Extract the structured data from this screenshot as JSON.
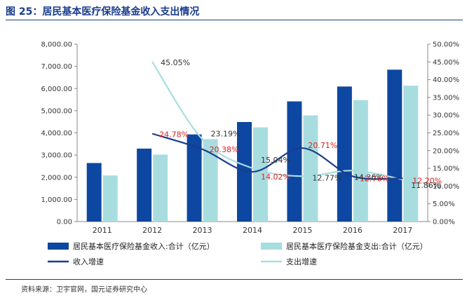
{
  "title": "图 25：居民基本医疗保险基金收入支出情况",
  "source": "资料来源：卫宇官网，国元证券研究中心",
  "colors": {
    "income_bar": "#0d47a1",
    "expense_bar": "#a8dde0",
    "income_line": "#1a3c8c",
    "expense_line": "#a8dde0",
    "label_red": "#e02020",
    "label_gray": "#333333",
    "title": "#1a3c8c"
  },
  "chart_data": {
    "type": "bar",
    "categories": [
      "2011",
      "2012",
      "2013",
      "2014",
      "2015",
      "2016",
      "2017"
    ],
    "left_axis": {
      "ylim": [
        0,
        8000
      ],
      "ticks": [
        "0.00",
        "1,000.00",
        "2,000.00",
        "3,000.00",
        "4,000.00",
        "5,000.00",
        "6,000.00",
        "7,000.00",
        "8,000.00"
      ]
    },
    "right_axis": {
      "ylim": [
        0,
        50
      ],
      "ticks": [
        "0.00%",
        "5.00%",
        "10.00%",
        "15.00%",
        "20.00%",
        "25.00%",
        "30.00%",
        "35.00%",
        "40.00%",
        "45.00%",
        "50.00%"
      ]
    },
    "series": [
      {
        "name": "居民基本医疗保险基金收入:合计（亿元）",
        "kind": "bar",
        "axis": "left",
        "values": [
          2640,
          3290,
          3930,
          4490,
          5420,
          6090,
          6850
        ]
      },
      {
        "name": "居民基本医疗保险基金支出:合计（亿元）",
        "kind": "bar",
        "axis": "left",
        "values": [
          2080,
          3020,
          3720,
          4250,
          4790,
          5480,
          6130
        ]
      },
      {
        "name": "收入增速",
        "kind": "line",
        "axis": "right",
        "values": [
          null,
          24.78,
          20.38,
          14.02,
          20.71,
          12.76,
          12.2
        ],
        "labels": [
          null,
          "24.78%",
          "20.38%",
          "14.02%",
          "20.71%",
          "12.76%",
          "12.20%"
        ]
      },
      {
        "name": "支出增速",
        "kind": "line",
        "axis": "right",
        "values": [
          null,
          45.05,
          23.19,
          15.04,
          12.77,
          14.36,
          11.86
        ],
        "labels": [
          null,
          "45.05%",
          "23.19%",
          "15.04%",
          "12.77%",
          "14.36%",
          "11.86%"
        ]
      }
    ],
    "legend_position": "bottom",
    "grid": false
  }
}
